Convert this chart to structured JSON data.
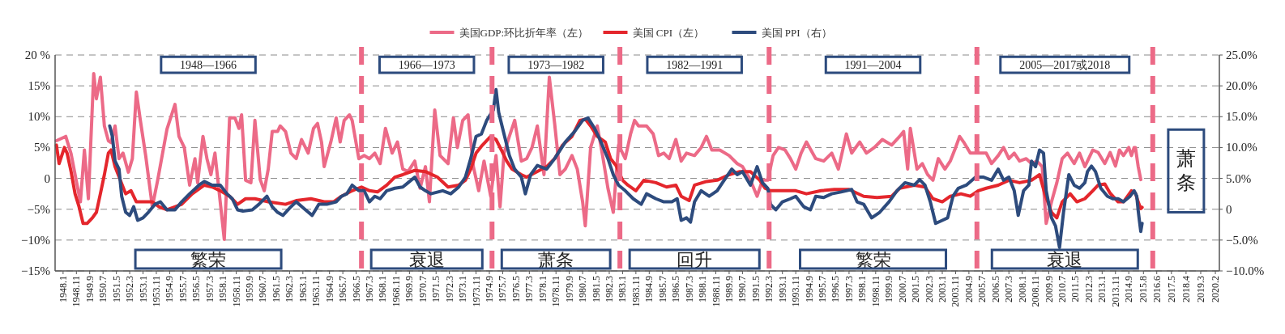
{
  "chart_data": {
    "type": "line",
    "xlim": [
      "1947-07",
      "2020-05"
    ],
    "xticks": [
      {
        "value": "1948-01",
        "label": "1948.1"
      },
      {
        "value": "1948-11",
        "label": "1948.11"
      },
      {
        "value": "1949-09",
        "label": "1949.9"
      },
      {
        "value": "1950-07",
        "label": "1950.7"
      },
      {
        "value": "1951-05",
        "label": "1951.5"
      },
      {
        "value": "1952-03",
        "label": "1952.3"
      },
      {
        "value": "1953-01",
        "label": "1953.1"
      },
      {
        "value": "1953-11",
        "label": "1953.11"
      },
      {
        "value": "1954-09",
        "label": "1954.9"
      },
      {
        "value": "1955-07",
        "label": "1955.7"
      },
      {
        "value": "1956-05",
        "label": "1956.5"
      },
      {
        "value": "1957-03",
        "label": "1957.3"
      },
      {
        "value": "1958-01",
        "label": "1958.1"
      },
      {
        "value": "1958-11",
        "label": "1958.11"
      },
      {
        "value": "1959-09",
        "label": "1959.9"
      },
      {
        "value": "1960-07",
        "label": "1960.7"
      },
      {
        "value": "1961-05",
        "label": "1961.5"
      },
      {
        "value": "1962-03",
        "label": "1962.3"
      },
      {
        "value": "1963-01",
        "label": "1963.1"
      },
      {
        "value": "1963-11",
        "label": "1963.11"
      },
      {
        "value": "1964-09",
        "label": "1964.9"
      },
      {
        "value": "1965-07",
        "label": "1965.7"
      },
      {
        "value": "1966-05",
        "label": "1966.5"
      },
      {
        "value": "1967-03",
        "label": "1967.3"
      },
      {
        "value": "1968-01",
        "label": "1968.1"
      },
      {
        "value": "1968-11",
        "label": "1968.11"
      },
      {
        "value": "1969-09",
        "label": "1969.9"
      },
      {
        "value": "1970-07",
        "label": "1970.7"
      },
      {
        "value": "1971-05",
        "label": "1971.5"
      },
      {
        "value": "1972-03",
        "label": "1972.3"
      },
      {
        "value": "1973-01",
        "label": "1973.1"
      },
      {
        "value": "1973-11",
        "label": "1973.11"
      },
      {
        "value": "1974-09",
        "label": "1974.9"
      },
      {
        "value": "1975-07",
        "label": "1975.7"
      },
      {
        "value": "1976-05",
        "label": "1976.5"
      },
      {
        "value": "1977-03",
        "label": "1977.3"
      },
      {
        "value": "1978-01",
        "label": "1978.1"
      },
      {
        "value": "1978-11",
        "label": "1978.11"
      },
      {
        "value": "1979-09",
        "label": "1979.9"
      },
      {
        "value": "1980-07",
        "label": "1980.7"
      },
      {
        "value": "1981-05",
        "label": "1981.5"
      },
      {
        "value": "1982-03",
        "label": "1982.3"
      },
      {
        "value": "1983-01",
        "label": "1983.1"
      },
      {
        "value": "1983-11",
        "label": "1983.11"
      },
      {
        "value": "1984-09",
        "label": "1984.9"
      },
      {
        "value": "1985-07",
        "label": "1985.7"
      },
      {
        "value": "1986-05",
        "label": "1986.5"
      },
      {
        "value": "1987-03",
        "label": "1987.3"
      },
      {
        "value": "1988-01",
        "label": "1988.1"
      },
      {
        "value": "1988-11",
        "label": "1988.11"
      },
      {
        "value": "1989-09",
        "label": "1989.9"
      },
      {
        "value": "1990-07",
        "label": "1990.7"
      },
      {
        "value": "1991-05",
        "label": "1991.5"
      },
      {
        "value": "1992-03",
        "label": "1992.3"
      },
      {
        "value": "1993-01",
        "label": "1993.1"
      },
      {
        "value": "1993-11",
        "label": "1993.11"
      },
      {
        "value": "1994-09",
        "label": "1994.9"
      },
      {
        "value": "1995-07",
        "label": "1995.7"
      },
      {
        "value": "1996-05",
        "label": "1996.5"
      },
      {
        "value": "1997-03",
        "label": "1997.3"
      },
      {
        "value": "1998-01",
        "label": "1998.1"
      },
      {
        "value": "1998-11",
        "label": "1998.11"
      },
      {
        "value": "1999-09",
        "label": "1999.9"
      },
      {
        "value": "2000-07",
        "label": "2000.7"
      },
      {
        "value": "2001-05",
        "label": "2001.5"
      },
      {
        "value": "2002-03",
        "label": "2002.3"
      },
      {
        "value": "2003-01",
        "label": "2003.1"
      },
      {
        "value": "2003-11",
        "label": "2003.11"
      },
      {
        "value": "2004-09",
        "label": "2004.9"
      },
      {
        "value": "2005-07",
        "label": "2005.7"
      },
      {
        "value": "2006-05",
        "label": "2006.5"
      },
      {
        "value": "2007-03",
        "label": "2007.3"
      },
      {
        "value": "2008-01",
        "label": "2008.1"
      },
      {
        "value": "2008-11",
        "label": "2008.11"
      },
      {
        "value": "2009-09",
        "label": "2009.9"
      },
      {
        "value": "2010-07",
        "label": "2010.7"
      },
      {
        "value": "2011-05",
        "label": "2011.5"
      },
      {
        "value": "2012-03",
        "label": "2012.3"
      },
      {
        "value": "2013-01",
        "label": "2013.1"
      },
      {
        "value": "2013-11",
        "label": "2013.11"
      },
      {
        "value": "2014-09",
        "label": "2014.9"
      },
      {
        "value": "2015-08",
        "label": "2015.8"
      },
      {
        "value": "2016-06",
        "label": "2016.6"
      },
      {
        "value": "2017-05",
        "label": "2017.5"
      },
      {
        "value": "2018-04",
        "label": "2018.4"
      },
      {
        "value": "2019-03",
        "label": "2019.3"
      },
      {
        "value": "2020-02",
        "label": "2020.2"
      }
    ],
    "ylim": [
      -15,
      20
    ],
    "yticks": [
      {
        "value": 20,
        "label": "20 %"
      },
      {
        "value": 15,
        "label": "15%"
      },
      {
        "value": 10,
        "label": "10%"
      },
      {
        "value": 5,
        "label": "5%"
      },
      {
        "value": 0,
        "label": "0"
      },
      {
        "value": -5,
        "label": "−5%"
      },
      {
        "value": -10,
        "label": "−10%"
      },
      {
        "value": -15,
        "label": "−15%"
      }
    ],
    "y2lim": [
      -10,
      25
    ],
    "y2ticks": [
      {
        "value": 25,
        "label": "25.0%"
      },
      {
        "value": 20,
        "label": "20.0%"
      },
      {
        "value": 15,
        "label": "15.0%"
      },
      {
        "value": 10,
        "label": "10.0%"
      },
      {
        "value": 5,
        "label": "5.0%"
      },
      {
        "value": 0,
        "label": "0"
      },
      {
        "value": -5,
        "label": "−5.0%"
      },
      {
        "value": -10,
        "label": "−10.0%"
      }
    ],
    "grid": "y",
    "legend": "top",
    "series": [
      {
        "name": "美国GDP:环比折年率（左）",
        "color": "#ec6a87",
        "x": [
          "1947-08",
          "1948-03",
          "1948-07",
          "1948-11",
          "1949-02",
          "1949-05",
          "1949-08",
          "1949-12",
          "1950-02",
          "1950-05",
          "1950-08",
          "1950-11",
          "1951-01",
          "1951-04",
          "1951-07",
          "1951-10",
          "1952-02",
          "1952-05",
          "1952-08",
          "1952-11",
          "1953-03",
          "1953-08",
          "1953-12",
          "1954-07",
          "1955-01",
          "1955-04",
          "1955-08",
          "1955-12",
          "1956-04",
          "1956-06",
          "1956-10",
          "1957-01",
          "1957-04",
          "1957-07",
          "1958-02",
          "1958-06",
          "1958-10",
          "1959-01",
          "1959-03",
          "1959-06",
          "1959-10",
          "1960-01",
          "1960-05",
          "1960-08",
          "1960-11",
          "1961-02",
          "1961-06",
          "1961-08",
          "1961-12",
          "1962-04",
          "1962-08",
          "1962-12",
          "1963-05",
          "1963-09",
          "1963-12",
          "1964-03",
          "1964-05",
          "1964-10",
          "1965-02",
          "1965-05",
          "1965-08",
          "1965-12",
          "1966-02",
          "1966-07",
          "1966-11",
          "1967-03",
          "1967-07",
          "1967-11",
          "1968-03",
          "1968-08",
          "1968-12",
          "1969-04",
          "1969-08",
          "1970-01",
          "1970-05",
          "1970-09",
          "1970-12",
          "1971-04",
          "1971-08",
          "1972-02",
          "1972-06",
          "1972-09",
          "1973-01",
          "1973-05",
          "1973-09",
          "1974-01",
          "1974-05",
          "1974-10",
          "1975-02",
          "1975-05",
          "1975-08",
          "1975-12",
          "1976-04",
          "1976-09",
          "1977-01",
          "1977-05",
          "1977-09",
          "1978-02",
          "1978-06",
          "1978-10",
          "1979-02",
          "1979-06",
          "1979-11",
          "1980-03",
          "1980-07",
          "1980-09",
          "1981-01",
          "1981-06",
          "1981-10",
          "1982-02",
          "1982-06",
          "1982-10",
          "1983-03",
          "1983-07",
          "1983-10",
          "1984-01",
          "1984-07",
          "1984-12",
          "1985-04",
          "1985-08",
          "1985-12",
          "1986-05",
          "1986-09",
          "1987-01",
          "1987-07",
          "1987-12",
          "1988-04",
          "1988-08",
          "1989-02",
          "1989-09",
          "1990-03",
          "1990-07",
          "1991-01",
          "1991-06",
          "1991-10",
          "1992-02",
          "1992-06",
          "1992-10",
          "1993-03",
          "1993-07",
          "1993-11",
          "1994-03",
          "1994-07",
          "1995-02",
          "1995-08",
          "1996-02",
          "1996-07",
          "1997-01",
          "1997-05",
          "1997-11",
          "1998-04",
          "1998-10",
          "1999-04",
          "1999-11",
          "2000-05",
          "2000-08",
          "2000-11",
          "2001-01",
          "2001-06",
          "2001-10",
          "2002-02",
          "2002-06",
          "2002-10",
          "2003-03",
          "2003-07",
          "2003-11",
          "2004-02",
          "2004-05",
          "2004-10",
          "2005-02",
          "2005-10",
          "2006-02",
          "2006-07",
          "2006-11",
          "2007-03",
          "2007-07",
          "2007-11",
          "2008-04",
          "2008-08",
          "2008-12",
          "2009-04",
          "2009-07",
          "2009-11",
          "2010-03",
          "2010-07",
          "2010-11",
          "2011-04",
          "2011-08",
          "2011-12",
          "2012-06",
          "2012-10",
          "2013-03",
          "2013-07",
          "2013-11",
          "2014-02",
          "2014-05",
          "2014-09",
          "2014-11",
          "2015-01",
          "2015-02",
          "2015-04",
          "2015-06"
        ],
        "values": [
          6.1,
          6.8,
          4.0,
          -0.5,
          -3.8,
          4.6,
          -3.3,
          17.0,
          12.9,
          16.4,
          8.5,
          6.1,
          5.8,
          8.5,
          3.2,
          4.1,
          1.0,
          3.2,
          14.0,
          9.4,
          3.7,
          -4.6,
          -0.3,
          8.0,
          12.0,
          6.8,
          5.0,
          -1.1,
          3.2,
          -0.7,
          6.8,
          3.2,
          0.6,
          4.1,
          -9.9,
          9.8,
          9.8,
          8.1,
          10.3,
          -0.3,
          -0.7,
          9.4,
          -0.2,
          -2.0,
          1.5,
          7.6,
          7.6,
          8.5,
          7.6,
          4.1,
          3.2,
          6.3,
          4.1,
          8.1,
          8.9,
          5.9,
          1.9,
          5.9,
          9.8,
          5.9,
          9.4,
          10.3,
          9.4,
          3.2,
          3.7,
          3.2,
          4.1,
          2.4,
          8.1,
          4.1,
          5.9,
          1.5,
          1.1,
          2.8,
          -1.6,
          1.9,
          -3.8,
          11.1,
          3.7,
          2.4,
          9.8,
          5.0,
          9.4,
          10.3,
          1.9,
          -2.0,
          2.8,
          -2.9,
          3.7,
          -4.6,
          4.1,
          6.8,
          9.4,
          2.8,
          3.2,
          5.0,
          8.5,
          0.6,
          16.4,
          8.9,
          0.6,
          1.5,
          3.7,
          1.5,
          -3.8,
          -7.7,
          5.0,
          8.5,
          3.7,
          -1.6,
          -5.5,
          5.4,
          3.2,
          7.2,
          9.4,
          8.5,
          8.5,
          7.2,
          3.7,
          4.1,
          3.2,
          6.3,
          2.8,
          4.1,
          3.7,
          5.0,
          6.8,
          4.6,
          4.6,
          3.7,
          2.4,
          1.9,
          -0.3,
          -2.9,
          -0.3,
          -0.3,
          3.7,
          5.0,
          4.6,
          3.2,
          1.5,
          4.1,
          5.9,
          3.2,
          2.8,
          4.1,
          1.5,
          7.2,
          4.1,
          5.9,
          4.1,
          5.0,
          6.3,
          5.4,
          6.8,
          7.6,
          1.5,
          8.1,
          1.5,
          2.4,
          0.6,
          -0.3,
          3.2,
          1.5,
          2.8,
          5.0,
          6.8,
          5.9,
          4.1,
          4.1,
          4.1,
          2.4,
          3.7,
          5.0,
          3.2,
          4.1,
          2.8,
          3.2,
          2.4,
          2.8,
          1.9,
          -7.3,
          -3.8,
          -0.7,
          3.2,
          4.1,
          2.4,
          4.1,
          1.9,
          4.6,
          4.2,
          2.4,
          4.2,
          2.0,
          4.6,
          3.7,
          5.0,
          3.7,
          5.0,
          5.0,
          2.0,
          -0.2
        ]
      },
      {
        "name": "美国 CPI（左）",
        "color": "#e4262c",
        "x": [
          "1947-08",
          "1947-10",
          "1948-02",
          "1948-04",
          "1948-07",
          "1948-10",
          "1949-01",
          "1949-04",
          "1949-07",
          "1949-11",
          "1950-02",
          "1950-05",
          "1950-08",
          "1950-11",
          "1951-01",
          "1951-04",
          "1951-08",
          "1951-12",
          "1952-04",
          "1952-08",
          "1953-08",
          "1954-01",
          "1954-07",
          "1955-06",
          "1956-02",
          "1956-11",
          "1957-05",
          "1957-11",
          "1958-06",
          "1958-12",
          "1959-06",
          "1960-01",
          "1960-11",
          "1961-12",
          "1962-08",
          "1963-07",
          "1964-05",
          "1964-12",
          "1965-06",
          "1966-02",
          "1966-09",
          "1967-03",
          "1967-09",
          "1968-04",
          "1968-10",
          "1969-04",
          "1970-01",
          "1970-09",
          "1971-06",
          "1972-02",
          "1972-10",
          "1973-03",
          "1973-07",
          "1973-11",
          "1974-03",
          "1974-10",
          "1975-02",
          "1975-06",
          "1975-10",
          "1976-02",
          "1976-09",
          "1977-01",
          "1978-04",
          "1978-10",
          "1979-04",
          "1979-11",
          "1980-05",
          "1980-09",
          "1981-01",
          "1981-06",
          "1981-12",
          "1982-04",
          "1982-08",
          "1983-01",
          "1983-05",
          "1983-11",
          "1984-05",
          "1985-02",
          "1985-10",
          "1986-05",
          "1986-09",
          "1987-03",
          "1987-07",
          "1988-04",
          "1988-12",
          "1989-09",
          "1990-05",
          "1991-01",
          "1991-08",
          "1991-12",
          "1992-04",
          "1993-01",
          "1993-11",
          "1994-07",
          "1995-06",
          "1996-04",
          "1997-03",
          "1998-02",
          "1998-12",
          "1999-11",
          "2000-05",
          "2001-04",
          "2001-12",
          "2002-06",
          "2003-01",
          "2003-07",
          "2004-03",
          "2004-10",
          "2005-04",
          "2005-10",
          "2006-07",
          "2007-03",
          "2007-11",
          "2008-08",
          "2009-02",
          "2009-06",
          "2009-11",
          "2010-03",
          "2010-07",
          "2011-01",
          "2011-06",
          "2011-12",
          "2012-06",
          "2012-10",
          "2013-03",
          "2013-07",
          "2014-01",
          "2014-05",
          "2014-11",
          "2015-02",
          "2015-04",
          "2015-06",
          "2015-07"
        ],
        "values": [
          5.4,
          2.4,
          5.0,
          4.1,
          1.1,
          -2.5,
          -4.6,
          -7.3,
          -7.3,
          -6.4,
          -5.5,
          -2.5,
          0.6,
          4.1,
          4.6,
          1.9,
          -0.3,
          -2.5,
          -2.0,
          -3.8,
          -3.8,
          -4.6,
          -5.1,
          -4.2,
          -2.5,
          -1.1,
          -1.4,
          -2.0,
          -2.9,
          -4.2,
          -3.3,
          -3.3,
          -3.8,
          -4.2,
          -3.6,
          -3.3,
          -3.8,
          -3.8,
          -2.9,
          -2.0,
          -1.4,
          -2.0,
          -2.2,
          -1.1,
          0.2,
          0.6,
          1.3,
          1.1,
          0.2,
          -1.4,
          -1.1,
          -0.3,
          1.5,
          4.1,
          5.2,
          6.8,
          6.3,
          4.6,
          2.8,
          1.5,
          0.6,
          0.2,
          1.9,
          3.2,
          5.4,
          6.8,
          9.4,
          9.6,
          8.5,
          6.8,
          5.9,
          3.2,
          2.1,
          -0.3,
          -1.1,
          -2.0,
          -0.3,
          -0.7,
          -1.4,
          -1.1,
          -2.9,
          -3.6,
          -1.1,
          -0.5,
          -0.3,
          0.6,
          1.1,
          1.1,
          -0.3,
          -1.6,
          -2.0,
          -2.0,
          -2.0,
          -2.5,
          -2.0,
          -1.8,
          -1.8,
          -2.9,
          -3.1,
          -2.9,
          -1.6,
          -1.1,
          -1.4,
          -3.3,
          -3.8,
          -2.9,
          -2.5,
          -2.9,
          -2.0,
          -1.6,
          -1.1,
          -0.3,
          -0.7,
          -0.3,
          0.6,
          -2.5,
          -5.5,
          -6.4,
          -3.8,
          -2.5,
          -3.8,
          -3.3,
          -2.0,
          -1.1,
          -0.9,
          -2.4,
          -3.8,
          -3.8,
          -2.0,
          -2.4,
          -3.8,
          -4.9,
          -4.7
        ]
      },
      {
        "name": "美国 PPI（右）",
        "color": "#2d4b7d",
        "axis": "y2",
        "x": [
          "1950-12",
          "1951-02",
          "1951-04",
          "1951-07",
          "1951-09",
          "1951-12",
          "1952-03",
          "1952-06",
          "1952-09",
          "1953-01",
          "1953-05",
          "1953-10",
          "1954-02",
          "1954-07",
          "1955-01",
          "1955-06",
          "1955-12",
          "1956-07",
          "1956-11",
          "1957-05",
          "1957-11",
          "1958-04",
          "1958-08",
          "1958-12",
          "1959-04",
          "1959-11",
          "1960-04",
          "1960-10",
          "1961-02",
          "1961-06",
          "1961-10",
          "1962-04",
          "1962-08",
          "1963-03",
          "1963-08",
          "1964-01",
          "1964-07",
          "1965-02",
          "1965-06",
          "1965-10",
          "1966-02",
          "1966-07",
          "1966-11",
          "1967-03",
          "1967-07",
          "1967-11",
          "1968-04",
          "1968-10",
          "1969-04",
          "1969-08",
          "1970-01",
          "1970-05",
          "1970-09",
          "1971-01",
          "1971-10",
          "1972-04",
          "1972-10",
          "1973-03",
          "1973-07",
          "1973-11",
          "1974-03",
          "1974-07",
          "1974-12",
          "1975-02",
          "1975-04",
          "1975-08",
          "1975-12",
          "1976-04",
          "1976-09",
          "1976-12",
          "1977-04",
          "1977-09",
          "1978-04",
          "1978-10",
          "1979-06",
          "1980-01",
          "1980-07",
          "1980-11",
          "1981-04",
          "1981-08",
          "1982-02",
          "1982-06",
          "1982-10",
          "1983-03",
          "1983-09",
          "1984-03",
          "1984-07",
          "1985-02",
          "1985-08",
          "1986-02",
          "1986-06",
          "1986-09",
          "1987-01",
          "1987-04",
          "1987-07",
          "1987-12",
          "1988-06",
          "1988-12",
          "1989-04",
          "1989-11",
          "1990-03",
          "1990-07",
          "1991-01",
          "1991-06",
          "1991-10",
          "1992-02",
          "1992-04",
          "1992-08",
          "1993-01",
          "1993-07",
          "1993-11",
          "1994-05",
          "1994-10",
          "1995-02",
          "1995-08",
          "1996-02",
          "1996-09",
          "1997-05",
          "1997-09",
          "1998-02",
          "1998-08",
          "1999-02",
          "1999-09",
          "2000-03",
          "2000-09",
          "2001-04",
          "2001-08",
          "2001-12",
          "2002-04",
          "2002-08",
          "2003-01",
          "2003-05",
          "2003-09",
          "2004-01",
          "2004-07",
          "2005-02",
          "2005-08",
          "2006-02",
          "2006-07",
          "2006-11",
          "2007-03",
          "2007-07",
          "2007-10",
          "2008-02",
          "2008-06",
          "2008-08",
          "2008-11",
          "2009-02",
          "2009-05",
          "2009-07",
          "2009-11",
          "2010-02",
          "2010-05",
          "2010-08",
          "2010-12",
          "2011-04",
          "2011-08",
          "2011-12",
          "2012-02",
          "2012-05",
          "2012-08",
          "2012-12",
          "2013-05",
          "2013-09",
          "2014-01",
          "2014-05",
          "2014-10",
          "2015-01",
          "2015-03",
          "2015-04",
          "2015-05",
          "2015-06",
          "2015-07"
        ],
        "values": [
          13.5,
          11.8,
          7.8,
          6.5,
          2.1,
          -0.5,
          -1.0,
          0.4,
          -1.8,
          -1.4,
          -0.5,
          0.8,
          1.2,
          -0.1,
          -0.1,
          1.2,
          2.5,
          3.9,
          4.5,
          3.9,
          3.9,
          2.5,
          1.7,
          -0.1,
          -0.3,
          -0.1,
          0.8,
          2.1,
          0.4,
          -0.5,
          -1.0,
          0.4,
          1.2,
          -0.1,
          -1.0,
          0.8,
          0.8,
          1.2,
          2.1,
          2.5,
          3.9,
          3.0,
          3.0,
          1.2,
          2.1,
          1.7,
          3.0,
          3.4,
          3.6,
          4.3,
          5.2,
          3.6,
          3.0,
          2.5,
          3.0,
          2.5,
          3.6,
          5.2,
          8.2,
          11.8,
          12.2,
          14.4,
          16.1,
          19.4,
          15.7,
          12.2,
          8.7,
          6.5,
          5.2,
          2.5,
          5.6,
          7.1,
          6.5,
          8.2,
          10.9,
          12.6,
          14.4,
          14.8,
          13.1,
          11.3,
          8.2,
          5.6,
          3.9,
          3.0,
          1.7,
          0.8,
          2.5,
          1.7,
          1.2,
          1.2,
          1.7,
          -1.8,
          -1.4,
          -2.1,
          1.2,
          3.0,
          2.1,
          3.0,
          4.3,
          6.5,
          5.6,
          6.1,
          3.9,
          6.9,
          4.3,
          3.4,
          0.8,
          -0.1,
          1.2,
          1.7,
          2.1,
          0.4,
          -0.1,
          2.1,
          1.9,
          2.5,
          2.8,
          3.2,
          1.2,
          0.8,
          -1.4,
          -0.5,
          1.2,
          3.0,
          4.3,
          3.9,
          4.8,
          3.9,
          1.2,
          -2.3,
          -1.8,
          -1.4,
          2.1,
          3.4,
          3.9,
          5.2,
          5.2,
          4.7,
          6.5,
          4.7,
          5.2,
          3.0,
          -1.0,
          3.0,
          3.9,
          7.8,
          6.9,
          9.6,
          9.1,
          3.0,
          -1.4,
          -2.7,
          -6.2,
          -0.5,
          5.6,
          3.9,
          3.4,
          4.3,
          6.1,
          7.0,
          6.1,
          3.4,
          2.1,
          1.7,
          1.7,
          1.2,
          2.1,
          3.0,
          2.1,
          -0.1,
          -1.9,
          -3.6,
          -2.3
        ]
      }
    ],
    "ref_lines": [
      {
        "axis": "x",
        "value": "1966-09",
        "color": "#ec6a87",
        "line_style": "dashed"
      },
      {
        "axis": "x",
        "value": "1974-11",
        "color": "#ec6a87",
        "line_style": "dashed"
      },
      {
        "axis": "x",
        "value": "1982-11",
        "color": "#ec6a87",
        "line_style": "dashed"
      },
      {
        "axis": "x",
        "value": "1992-03",
        "color": "#ec6a87",
        "line_style": "dashed"
      },
      {
        "axis": "x",
        "value": "2005-03",
        "color": "#ec6a87",
        "line_style": "dashed"
      },
      {
        "axis": "x",
        "value": "2016-03",
        "color": "#ec6a87",
        "line_style": "dashed"
      }
    ],
    "annotations": [
      "1948—1966",
      "1966—1973",
      "1973—1982",
      "1982—1991",
      "1991—2004",
      "2005—2017或2018",
      "繁荣",
      "衰退",
      "萧条",
      "回升",
      "繁荣",
      "衰退",
      "萧条"
    ]
  }
}
